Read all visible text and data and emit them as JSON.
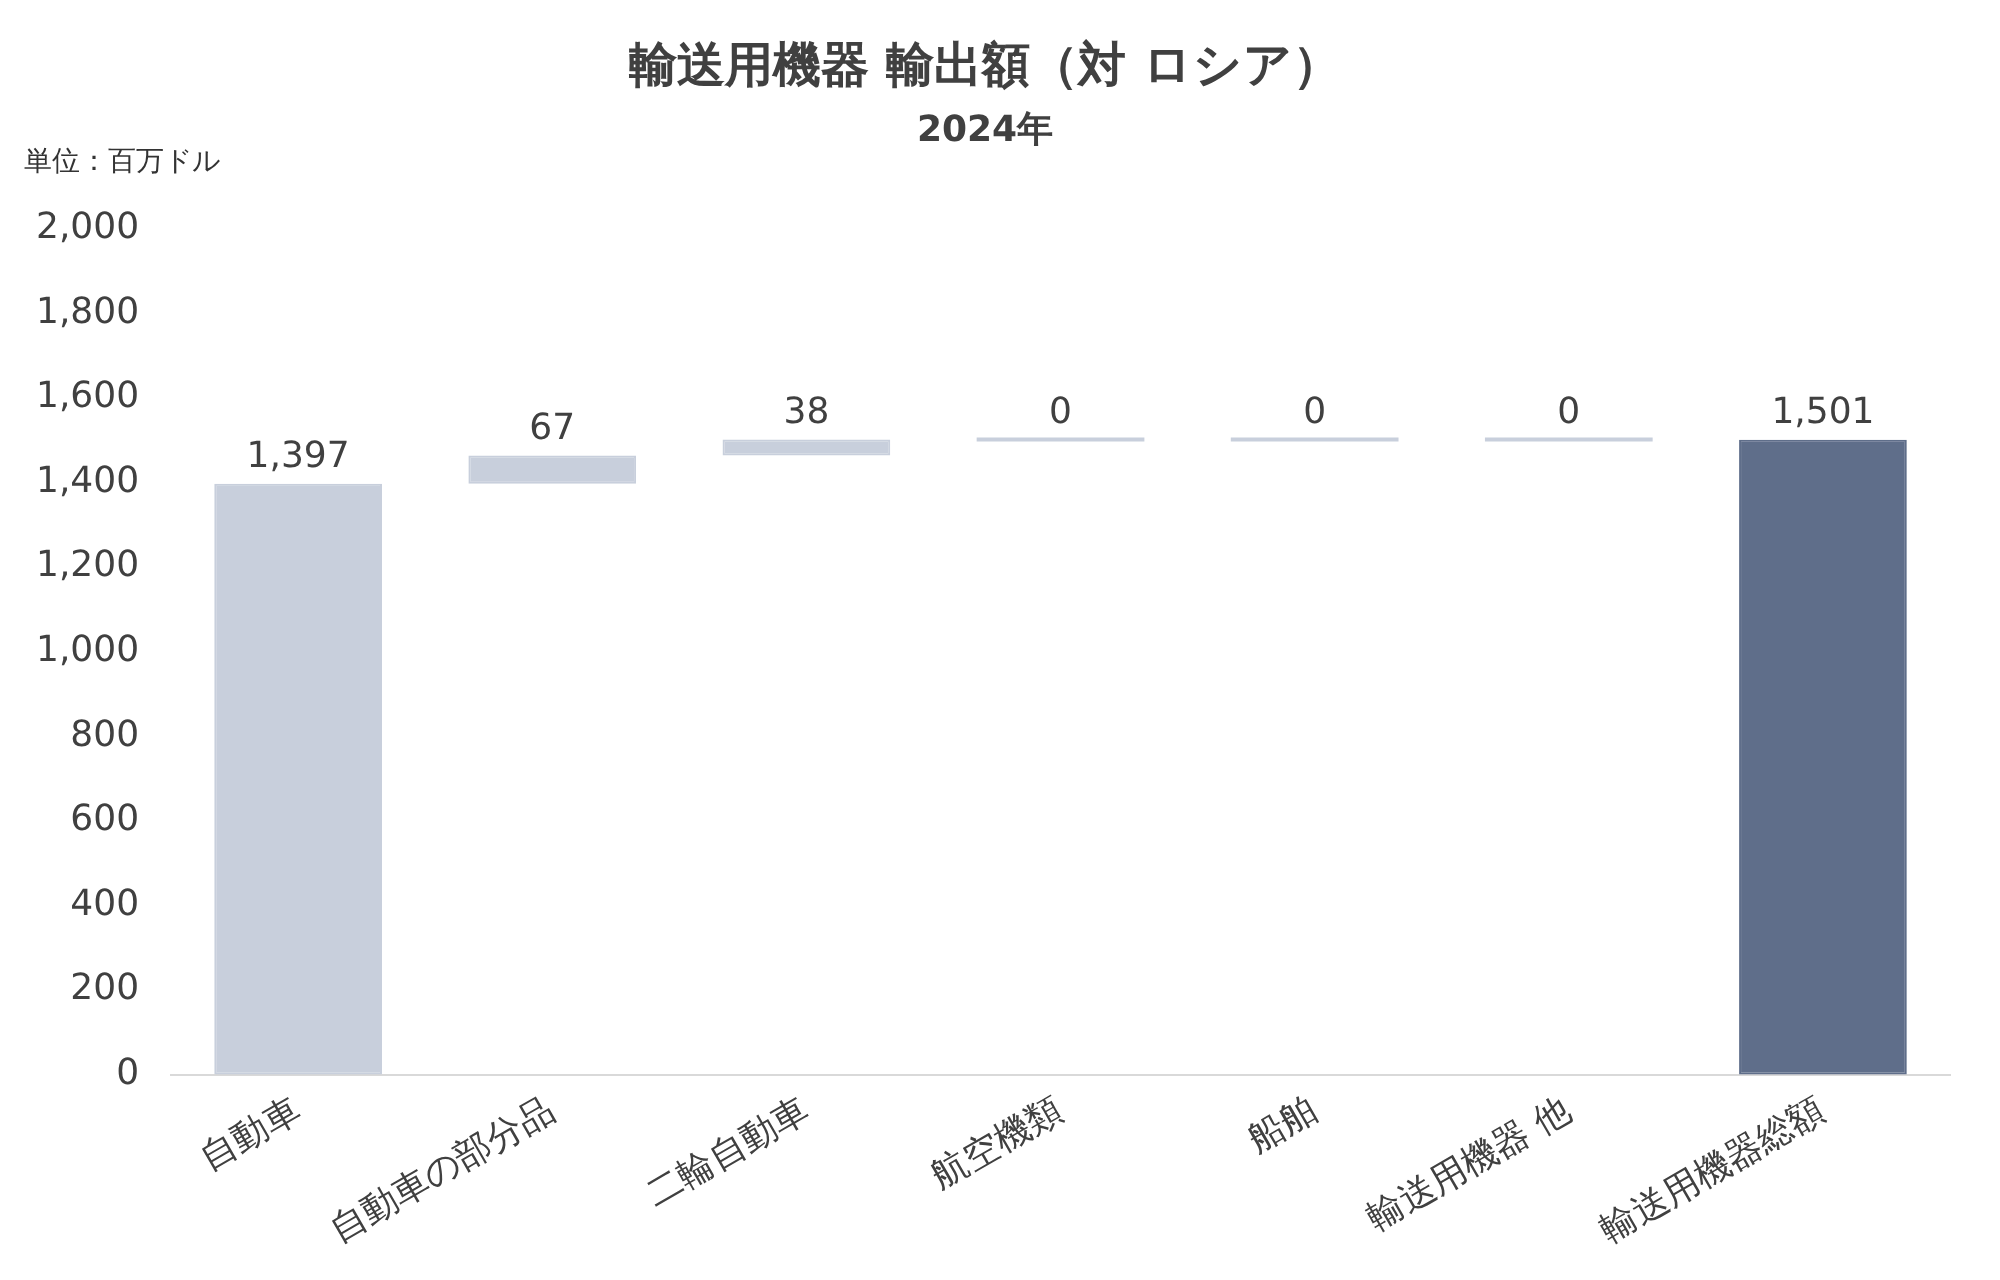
{
  "chart_data": {
    "type": "bar",
    "title": "輸送用機器 輸出額（対 ロシア）",
    "subtitle": "2024年",
    "annotations": [
      "単位：百万ドル"
    ],
    "categories": [
      "自動車",
      "自動車の部分品",
      "二輪自動車",
      "航空機類",
      "船舶",
      "輸送用機器 他",
      "輸送用機器総額"
    ],
    "values": [
      1397,
      67,
      38,
      0,
      0,
      0,
      1501
    ],
    "base": [
      0,
      1397,
      1464,
      1502,
      1502,
      1502,
      0
    ],
    "colors": [
      "#c8cfdc",
      "#c8cfdc",
      "#c8cfdc",
      "#c8cfdc",
      "#c8cfdc",
      "#c8cfdc",
      "#5f6e8a"
    ],
    "ylim": [
      0,
      2000
    ],
    "yticks": [
      0,
      200,
      400,
      600,
      800,
      {
        "value": 1000,
        "label": "1,000"
      },
      {
        "value": 1200,
        "label": "1,200"
      },
      {
        "value": 1400,
        "label": "1,400"
      },
      {
        "value": 1600,
        "label": "1,600"
      },
      {
        "value": 1800,
        "label": "1,800"
      },
      {
        "value": 2000,
        "label": "2,000"
      }
    ],
    "value_labels": [
      "1,397",
      "67",
      "38",
      "0",
      "0",
      "0",
      "1,501"
    ],
    "grid": false,
    "legend": false
  }
}
